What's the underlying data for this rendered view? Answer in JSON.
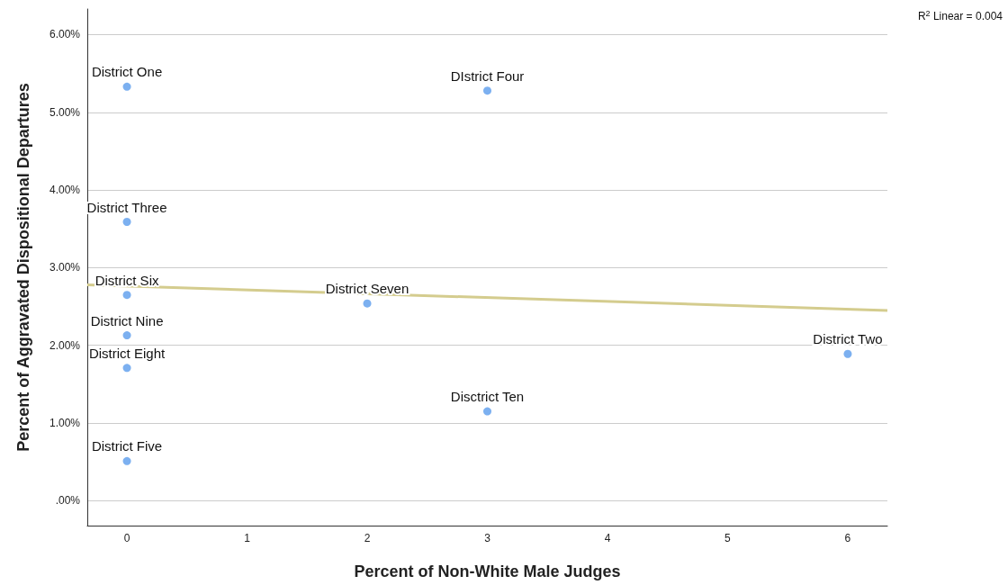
{
  "chart_data": {
    "type": "scatter",
    "xlabel": "Percent of Non-White Male Judges",
    "ylabel": "Percent of Aggravated Dispositional Departures",
    "xlim": [
      -0.33,
      6.33
    ],
    "xticks": [
      0,
      1,
      2,
      3,
      4,
      5,
      6
    ],
    "ylim": [
      -0.32,
      6.33
    ],
    "yticks": [
      {
        "value": 0,
        "label": ".00%"
      },
      {
        "value": 1,
        "label": "1.00%"
      },
      {
        "value": 2,
        "label": "2.00%"
      },
      {
        "value": 3,
        "label": "3.00%"
      },
      {
        "value": 4,
        "label": "4.00%"
      },
      {
        "value": 5,
        "label": "5.00%"
      },
      {
        "value": 6,
        "label": "6.00%"
      }
    ],
    "grid": "y",
    "series": [
      {
        "marker": "circle",
        "color": "#5b9cec",
        "x": [
          0,
          3,
          0,
          0,
          0,
          0,
          0,
          2,
          6,
          3
        ],
        "values": [
          5.33,
          5.28,
          3.59,
          2.65,
          2.13,
          1.71,
          0.51,
          2.54,
          1.89,
          1.15
        ]
      },
      {
        "type": "line",
        "color": "#d4cc8e",
        "x": [
          -0.33,
          6.33
        ],
        "values": [
          2.78,
          2.45
        ]
      }
    ],
    "annotations": [
      {
        "text": "District One",
        "x": 0,
        "y": 5.33
      },
      {
        "text": "DIstrict Four",
        "x": 3,
        "y": 5.28
      },
      {
        "text": "District Three",
        "x": 0,
        "y": 3.59
      },
      {
        "text": "District Six",
        "x": 0,
        "y": 2.65
      },
      {
        "text": "District Nine",
        "x": 0,
        "y": 2.13
      },
      {
        "text": "District Eight",
        "x": 0,
        "y": 1.71
      },
      {
        "text": "District Five",
        "x": 0,
        "y": 0.51
      },
      {
        "text": "District Seven",
        "x": 2,
        "y": 2.54
      },
      {
        "text": "District Two",
        "x": 6,
        "y": 1.89
      },
      {
        "text": "Disctrict Ten",
        "x": 3,
        "y": 1.15
      },
      "R$^{2}$ Linear = 0.004"
    ]
  }
}
